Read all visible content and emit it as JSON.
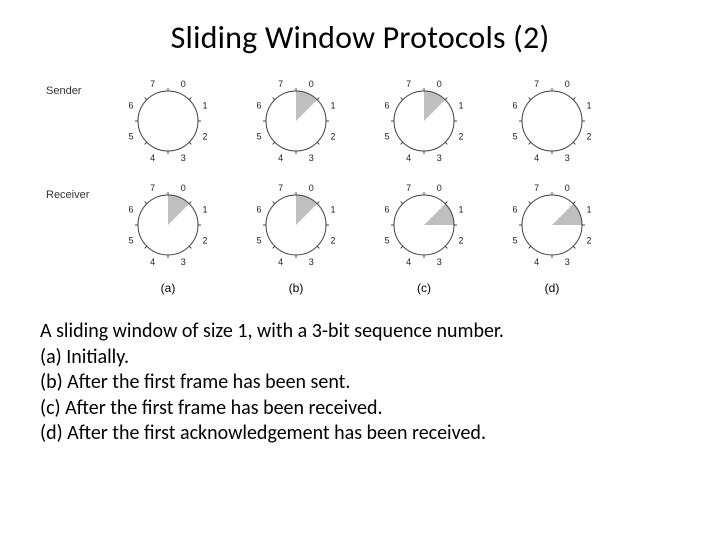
{
  "title": "Sliding Window Protocols (2)",
  "row_labels": {
    "sender": "Sender",
    "receiver": "Receiver"
  },
  "sectors_per_dial": 8,
  "dial": {
    "outer_radius": 30,
    "tick_outer": 33,
    "label_radius": 40,
    "stroke_color": "#444444",
    "fill_color": "#bfbfbf",
    "background": "#ffffff",
    "stroke_width": 1
  },
  "dials": {
    "sender": [
      {
        "shaded": []
      },
      {
        "shaded": [
          0
        ]
      },
      {
        "shaded": [
          0
        ]
      },
      {
        "shaded": []
      }
    ],
    "receiver": [
      {
        "shaded": [
          0
        ]
      },
      {
        "shaded": [
          0
        ]
      },
      {
        "shaded": [
          1
        ]
      },
      {
        "shaded": [
          1
        ]
      }
    ]
  },
  "column_labels": [
    "(a)",
    "(b)",
    "(c)",
    "(d)"
  ],
  "caption": [
    "A sliding window of size 1, with a 3-bit sequence number.",
    "(a) Initially.",
    "(b) After the first frame has been sent.",
    "(c) After the first frame has been received.",
    "(d) After the first acknowledgement has been received."
  ]
}
